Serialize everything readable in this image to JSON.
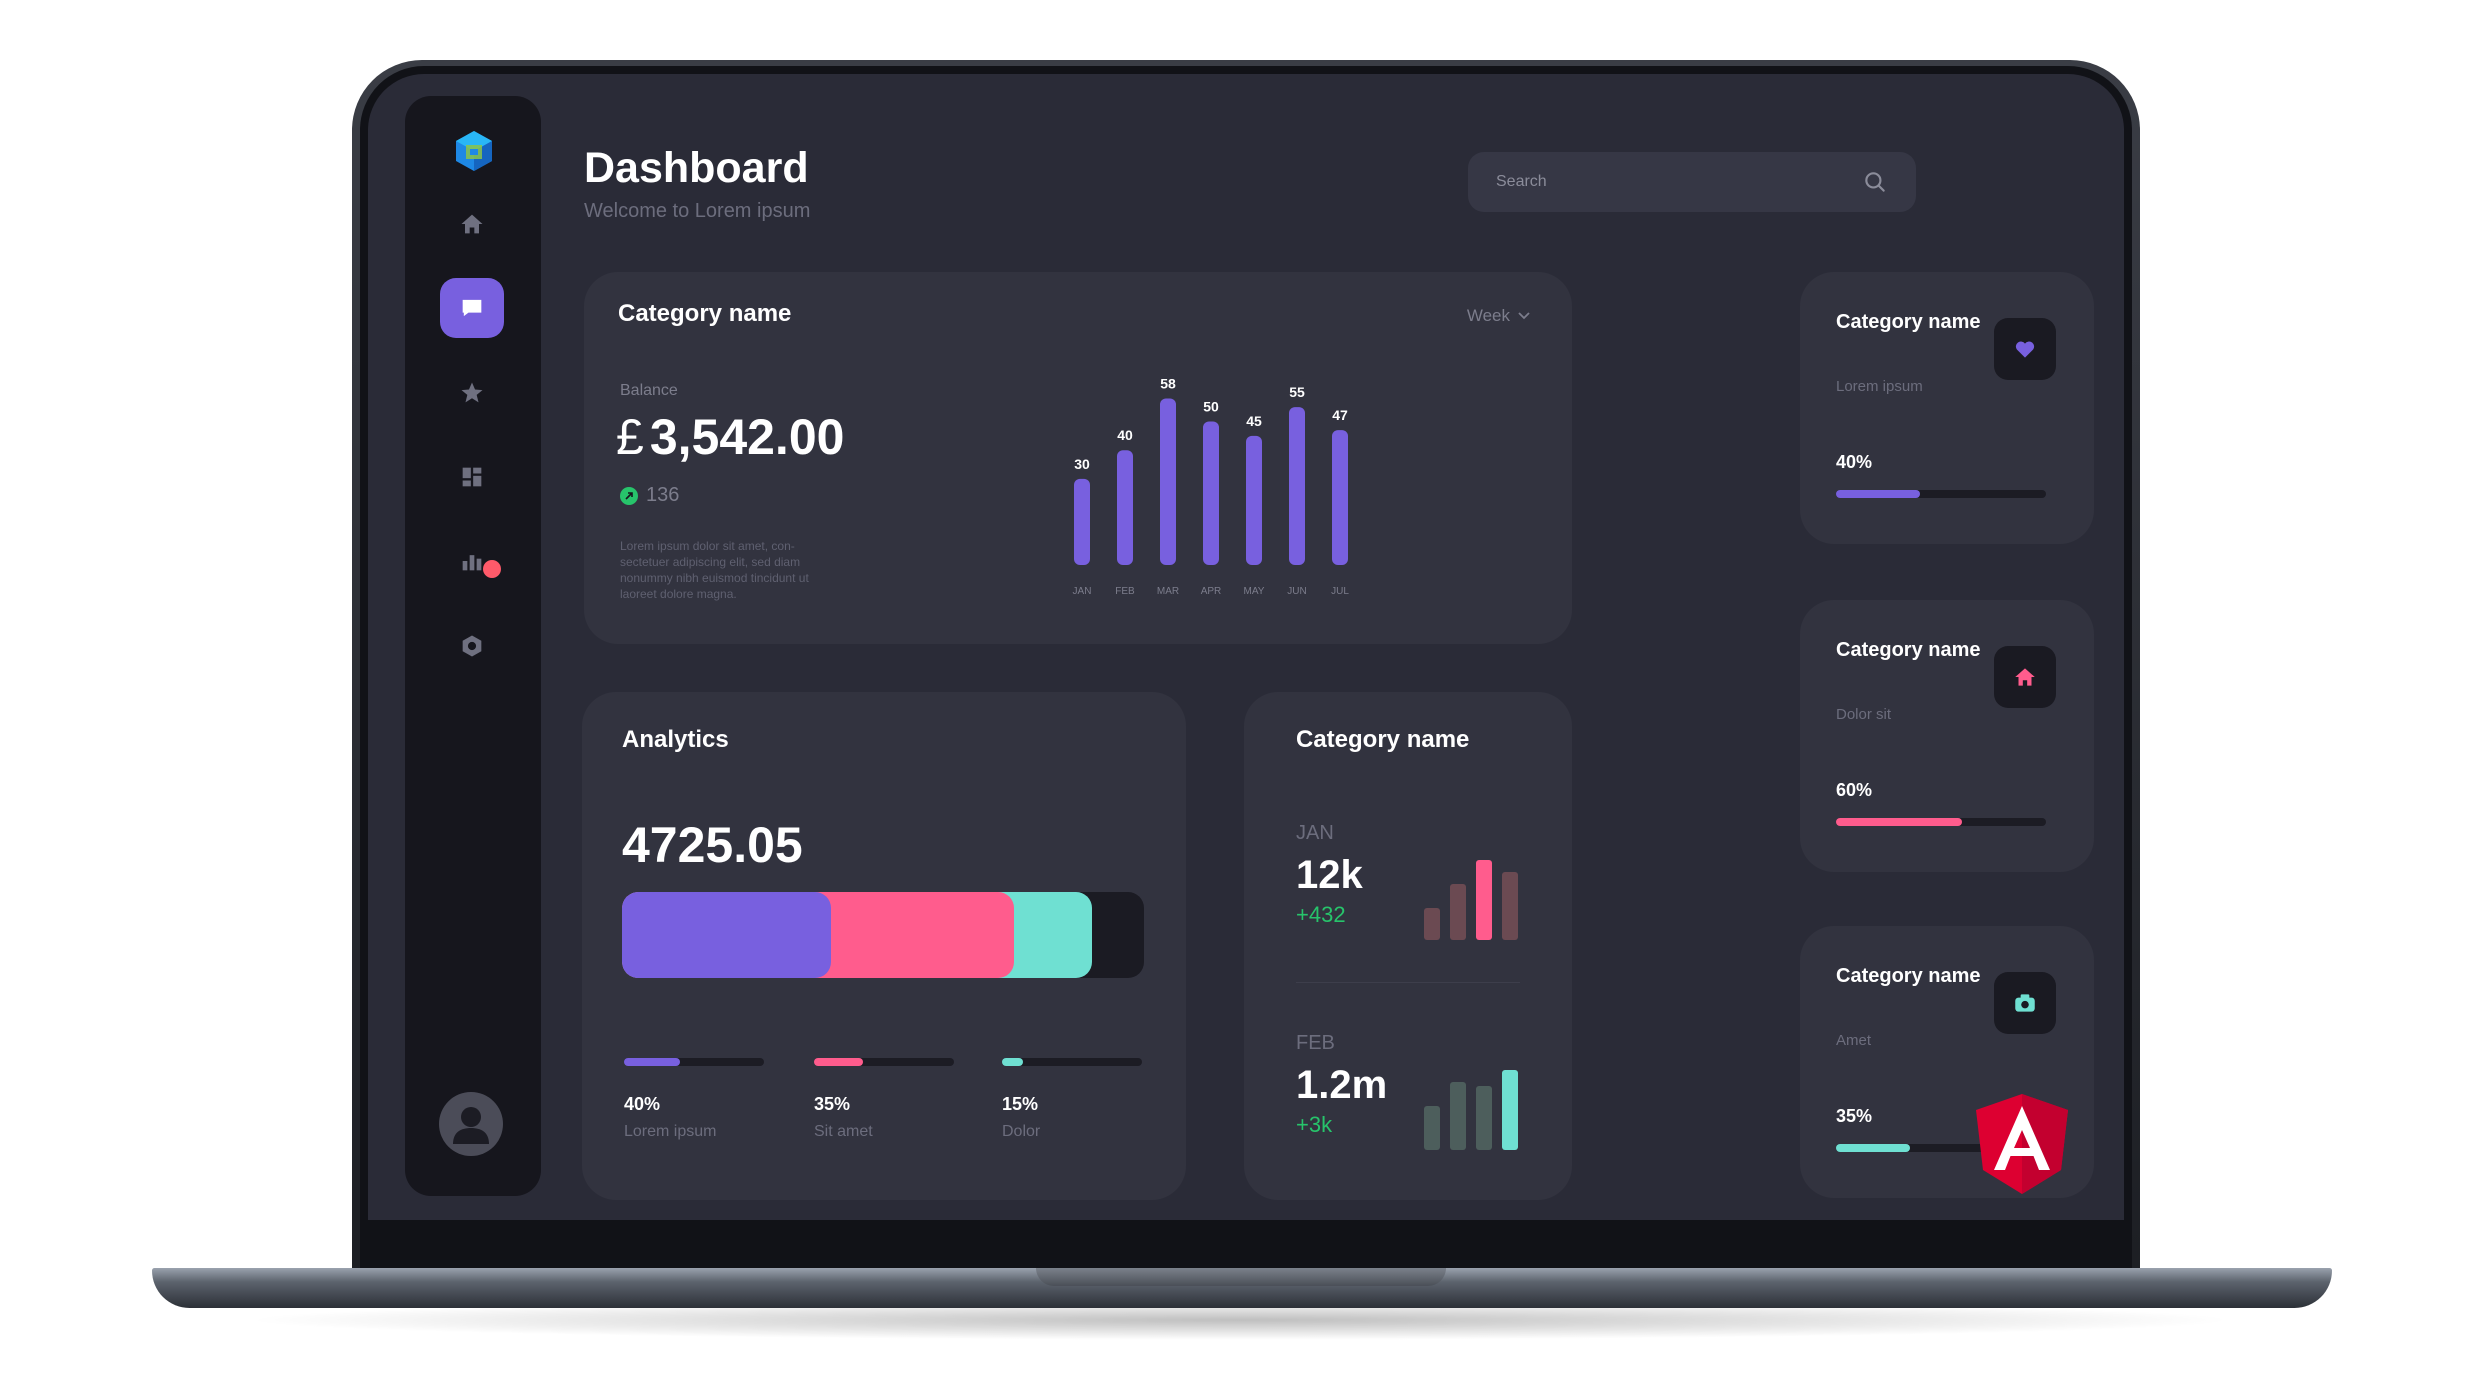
{
  "header": {
    "title": "Dashboard",
    "subtitle": "Welcome to Lorem ipsum"
  },
  "search": {
    "placeholder": "Search"
  },
  "sidebar": {
    "items": [
      {
        "icon": "home-icon",
        "active": false
      },
      {
        "icon": "chat-icon",
        "active": true
      },
      {
        "icon": "star-icon",
        "active": false
      },
      {
        "icon": "grid-icon",
        "active": false
      },
      {
        "icon": "bar-chart-icon",
        "active": false,
        "badge": true
      },
      {
        "icon": "hexagon-icon",
        "active": false
      }
    ]
  },
  "balance_card": {
    "title": "Category name",
    "period": "Week",
    "balance_label": "Balance",
    "currency": "£",
    "balance": "3,542.00",
    "change": "136",
    "description": "Lorem ipsum dolor sit amet, con- sectetuer adipiscing elit, sed diam nonummy nibh euismod tincidunt ut laoreet dolore magna."
  },
  "chart_data": {
    "type": "bar",
    "categories": [
      "JAN",
      "FEB",
      "MAR",
      "APR",
      "MAY",
      "JUN",
      "JUL"
    ],
    "values": [
      30,
      40,
      58,
      50,
      45,
      55,
      47
    ],
    "title": "",
    "xlabel": "",
    "ylabel": "",
    "color": "#7860df"
  },
  "side_cards": [
    {
      "title": "Category name",
      "subtitle": "Lorem ipsum",
      "percent_label": "40%",
      "percent": 0.4,
      "color": "#7860df",
      "icon": "heart-icon"
    },
    {
      "title": "Category name",
      "subtitle": "Dolor sit",
      "percent_label": "60%",
      "percent": 0.6,
      "color": "#ff5c8d",
      "icon": "home-icon"
    },
    {
      "title": "Category name",
      "subtitle": "Amet",
      "percent_label": "35%",
      "percent": 0.35,
      "color": "#6fe0d2",
      "icon": "camera-icon"
    }
  ],
  "analytics": {
    "title": "Analytics",
    "value": "4725.05",
    "segments": [
      {
        "label": "Lorem ipsum",
        "percent_label": "40%",
        "percent": 0.4,
        "color": "#7860df"
      },
      {
        "label": "Sit amet",
        "percent_label": "35%",
        "percent": 0.35,
        "color": "#ff5c8d"
      },
      {
        "label": "Dolor",
        "percent_label": "15%",
        "percent": 0.15,
        "color": "#6fe0d2"
      }
    ]
  },
  "monthly": {
    "title": "Category name",
    "items": [
      {
        "month": "JAN",
        "value": "12k",
        "delta": "+432",
        "bars": [
          0.4,
          0.7,
          1.0,
          0.85
        ],
        "colors": [
          "#6b4a52",
          "#6b4a52",
          "#ff5c8d",
          "#6b4a52"
        ]
      },
      {
        "month": "FEB",
        "value": "1.2m",
        "delta": "+3k",
        "bars": [
          0.55,
          0.85,
          0.8,
          1.0
        ],
        "colors": [
          "#4d5e5c",
          "#4d5e5c",
          "#4d5e5c",
          "#6fe0d2"
        ]
      }
    ]
  }
}
